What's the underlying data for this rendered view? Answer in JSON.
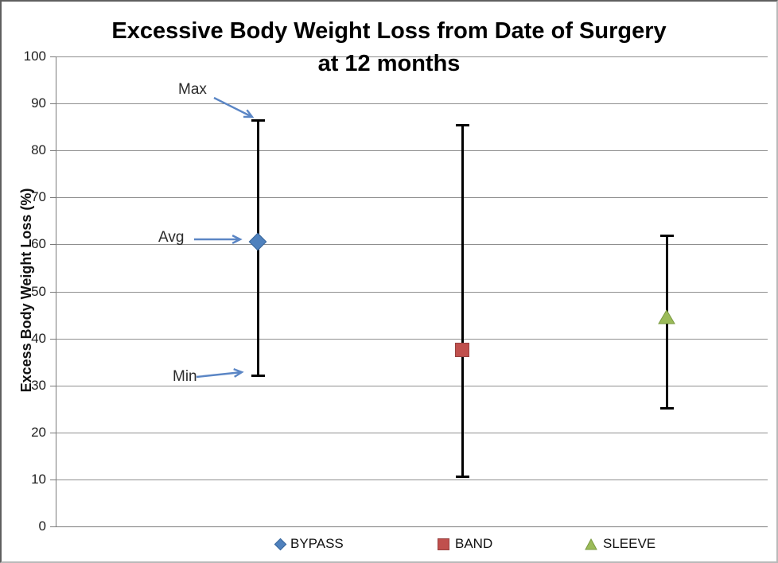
{
  "chart_data": {
    "type": "scatter",
    "title": "Excessive Body Weight Loss from Date of Surgery at 12 months",
    "title_line1": "Excessive Body Weight Loss from Date of Surgery",
    "title_line2": "at 12 months",
    "xlabel": "",
    "ylabel": "Excess Body Weight Loss (%)",
    "ylim": [
      0,
      100
    ],
    "yticks": [
      0,
      10,
      20,
      30,
      40,
      50,
      60,
      70,
      80,
      90,
      100
    ],
    "grid": "horizontal",
    "legend_position": "bottom",
    "categories": [
      "BYPASS",
      "BAND",
      "SLEEVE"
    ],
    "series": [
      {
        "name": "BYPASS",
        "marker": "diamond",
        "color": "#4F81BD",
        "border_color": "#3A679C",
        "avg": 60.5,
        "min": 32,
        "max": 86.5
      },
      {
        "name": "BAND",
        "marker": "square",
        "color": "#C0504D",
        "border_color": "#97413F",
        "avg": 37.5,
        "min": 10.5,
        "max": 85.5
      },
      {
        "name": "SLEEVE",
        "marker": "triangle",
        "color": "#9BBB59",
        "border_color": "#7A9A40",
        "avg": 44.5,
        "min": 25,
        "max": 62
      }
    ],
    "annotations": [
      {
        "label": "Max",
        "target": "BYPASS max"
      },
      {
        "label": "Avg",
        "target": "BYPASS avg"
      },
      {
        "label": "Min",
        "target": "BYPASS min"
      }
    ],
    "annotation_arrow_color": "#5B86C5",
    "gridline_color": "#8F8F8F",
    "error_bar_color": "#000000",
    "axis_text_color": "#1F1F1F"
  }
}
